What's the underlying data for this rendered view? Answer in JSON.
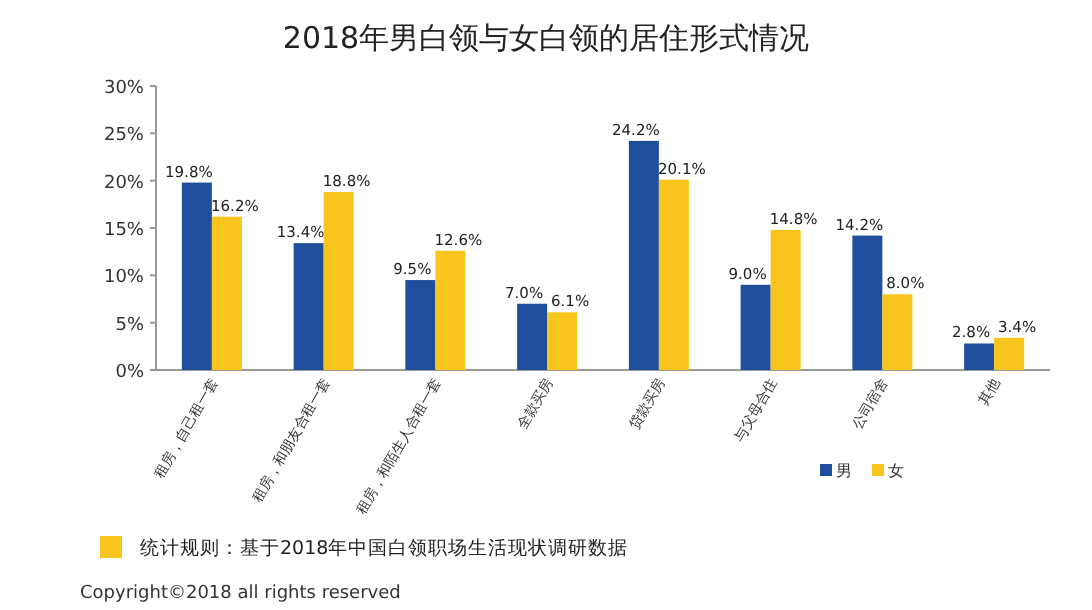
{
  "chart_data": {
    "type": "bar",
    "title": "2018年男白领与女白领的居住形式情况",
    "categories": [
      "租房，自己租一套",
      "租房，和朋友合租一套",
      "租房，和陌生人合租一套",
      "全款买房",
      "贷款买房",
      "与父母合住",
      "公司宿舍",
      "其他"
    ],
    "series": [
      {
        "name": "男",
        "color": "#1f4e9c",
        "values": [
          19.8,
          13.4,
          9.5,
          7.0,
          24.2,
          9.0,
          14.2,
          2.8
        ],
        "value_labels": [
          "19.8%",
          "13.4%",
          "9.5%",
          "7.0%",
          "24.2%",
          "9.0%",
          "14.2%",
          "2.8%"
        ]
      },
      {
        "name": "女",
        "color": "#f7c51e",
        "values": [
          16.2,
          18.8,
          12.6,
          6.1,
          20.1,
          14.8,
          8.0,
          3.4
        ],
        "value_labels": [
          "16.2%",
          "18.8%",
          "12.6%",
          "6.1%",
          "20.1%",
          "14.8%",
          "8.0%",
          "3.4%"
        ]
      }
    ],
    "ylim": [
      0,
      30
    ],
    "yticks": [
      {
        "value": 0,
        "label": "0%"
      },
      {
        "value": 5,
        "label": "5%"
      },
      {
        "value": 10,
        "label": "10%"
      },
      {
        "value": 15,
        "label": "15%"
      },
      {
        "value": 20,
        "label": "20%"
      },
      {
        "value": 25,
        "label": "25%"
      },
      {
        "value": 30,
        "label": "30%"
      }
    ],
    "legend": "bottom right",
    "annotations": [
      "统计规则：基于2018年中国白领职场生活现状调研数据",
      "Copyright©2018 all rights reserved"
    ]
  }
}
